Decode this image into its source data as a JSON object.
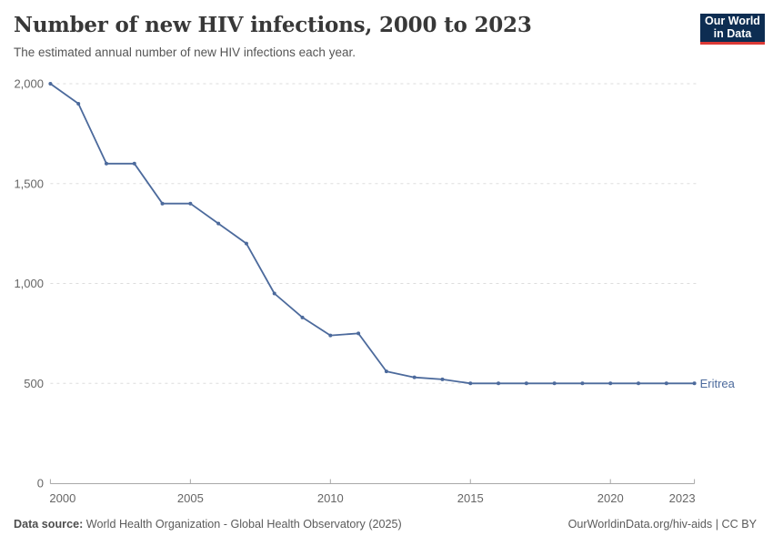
{
  "header": {
    "title": "Number of new HIV infections, 2000 to 2023",
    "subtitle": "The estimated annual number of new HIV infections each year.",
    "logo_line1": "Our World",
    "logo_line2": "in Data"
  },
  "chart_data": {
    "type": "line",
    "title": "Number of new HIV infections, 2000 to 2023",
    "xlabel": "",
    "ylabel": "",
    "x": [
      2000,
      2001,
      2002,
      2003,
      2004,
      2005,
      2006,
      2007,
      2008,
      2009,
      2010,
      2011,
      2012,
      2013,
      2014,
      2015,
      2016,
      2017,
      2018,
      2019,
      2020,
      2021,
      2022,
      2023
    ],
    "series": [
      {
        "name": "Eritrea",
        "color": "#4C6A9C",
        "values": [
          2000,
          1900,
          1600,
          1600,
          1400,
          1400,
          1300,
          1200,
          950,
          830,
          740,
          750,
          560,
          530,
          520,
          500,
          500,
          500,
          500,
          500,
          500,
          500,
          500,
          500
        ]
      }
    ],
    "ylim": [
      0,
      2000
    ],
    "yticks": [
      0,
      500,
      1000,
      1500,
      2000
    ],
    "ytick_labels": [
      "0",
      "500",
      "1,000",
      "1,500",
      "2,000"
    ],
    "xticks": [
      2000,
      2005,
      2010,
      2015,
      2020,
      2023
    ],
    "xtick_labels": [
      "2000",
      "2005",
      "2010",
      "2015",
      "2020",
      "2023"
    ],
    "grid": "horizontal-dashed",
    "legend_position": "end-of-line",
    "end_label": "Eritrea"
  },
  "footer": {
    "source_label": "Data source:",
    "source_value": "World Health Organization - Global Health Observatory (2025)",
    "credit": "OurWorldinData.org/hiv-aids | CC BY"
  },
  "colors": {
    "line": "#4C6A9C",
    "grid": "#dddddd",
    "axis": "#a8a8a8",
    "tick_text": "#666666",
    "title_text": "#383838",
    "subtitle_text": "#555555",
    "footer_text": "#5b5b5b",
    "logo_bg": "#0d2d52",
    "logo_red": "#dc3a36",
    "logo_text": "#ffffff"
  }
}
